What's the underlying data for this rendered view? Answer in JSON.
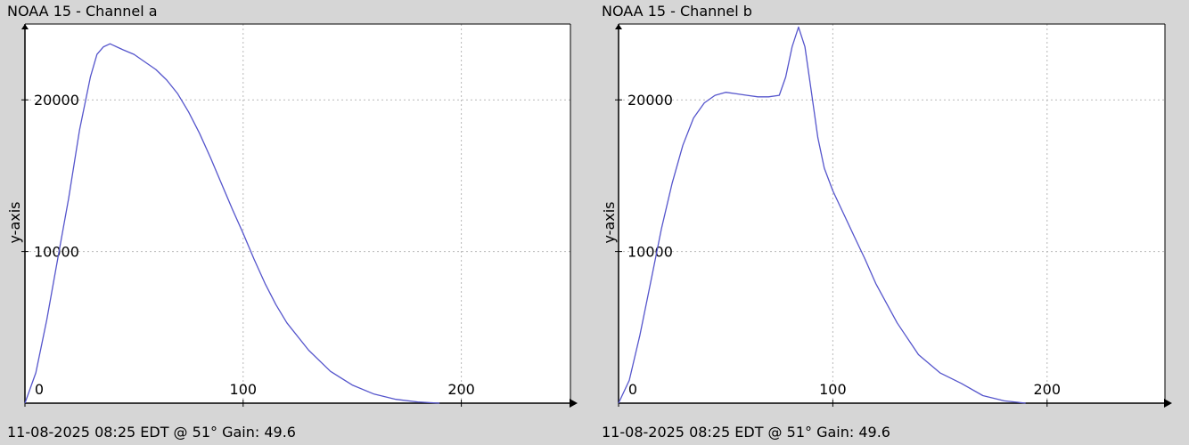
{
  "chart_data": [
    {
      "type": "line",
      "title": "NOAA 15 - Channel a",
      "footer": "11-08-2025 08:25 EDT @ 51° Gain: 49.6",
      "xlabel": "",
      "ylabel": "y-axis",
      "xlim": [
        0,
        250
      ],
      "ylim": [
        0,
        25000
      ],
      "xticks": [
        0,
        100,
        200
      ],
      "yticks": [
        10000,
        20000
      ],
      "grid": true,
      "color": "#5555cc",
      "series": [
        {
          "x": [
            0,
            5,
            10,
            15,
            20,
            25,
            30,
            33,
            36,
            39,
            42,
            45,
            50,
            55,
            60,
            65,
            70,
            75,
            80,
            85,
            90,
            95,
            100,
            105,
            110,
            115,
            120,
            130,
            140,
            150,
            160,
            170,
            180,
            190
          ],
          "y": [
            0,
            2000,
            5500,
            9500,
            13500,
            18000,
            21500,
            23000,
            23500,
            23700,
            23500,
            23300,
            23000,
            22500,
            22000,
            21300,
            20400,
            19200,
            17800,
            16200,
            14500,
            12800,
            11200,
            9500,
            7900,
            6500,
            5300,
            3500,
            2100,
            1200,
            600,
            250,
            80,
            0
          ]
        }
      ]
    },
    {
      "type": "line",
      "title": "NOAA 15 - Channel b",
      "footer": "11-08-2025 08:25 EDT @ 51° Gain: 49.6",
      "xlabel": "",
      "ylabel": "y-axis",
      "xlim": [
        0,
        255
      ],
      "ylim": [
        0,
        25000
      ],
      "xticks": [
        0,
        100,
        200
      ],
      "yticks": [
        10000,
        20000
      ],
      "grid": true,
      "color": "#5555cc",
      "series": [
        {
          "x": [
            0,
            5,
            10,
            15,
            20,
            25,
            30,
            35,
            40,
            45,
            50,
            55,
            60,
            65,
            70,
            75,
            78,
            81,
            84,
            87,
            90,
            93,
            96,
            100,
            105,
            110,
            115,
            120,
            130,
            140,
            150,
            160,
            170,
            180,
            190
          ],
          "y": [
            0,
            1500,
            4500,
            8000,
            11500,
            14500,
            17000,
            18800,
            19800,
            20300,
            20500,
            20400,
            20300,
            20200,
            20200,
            20300,
            21500,
            23500,
            24800,
            23500,
            20500,
            17500,
            15500,
            14000,
            12500,
            11000,
            9500,
            7900,
            5300,
            3200,
            2000,
            1300,
            500,
            150,
            0
          ]
        }
      ]
    }
  ]
}
